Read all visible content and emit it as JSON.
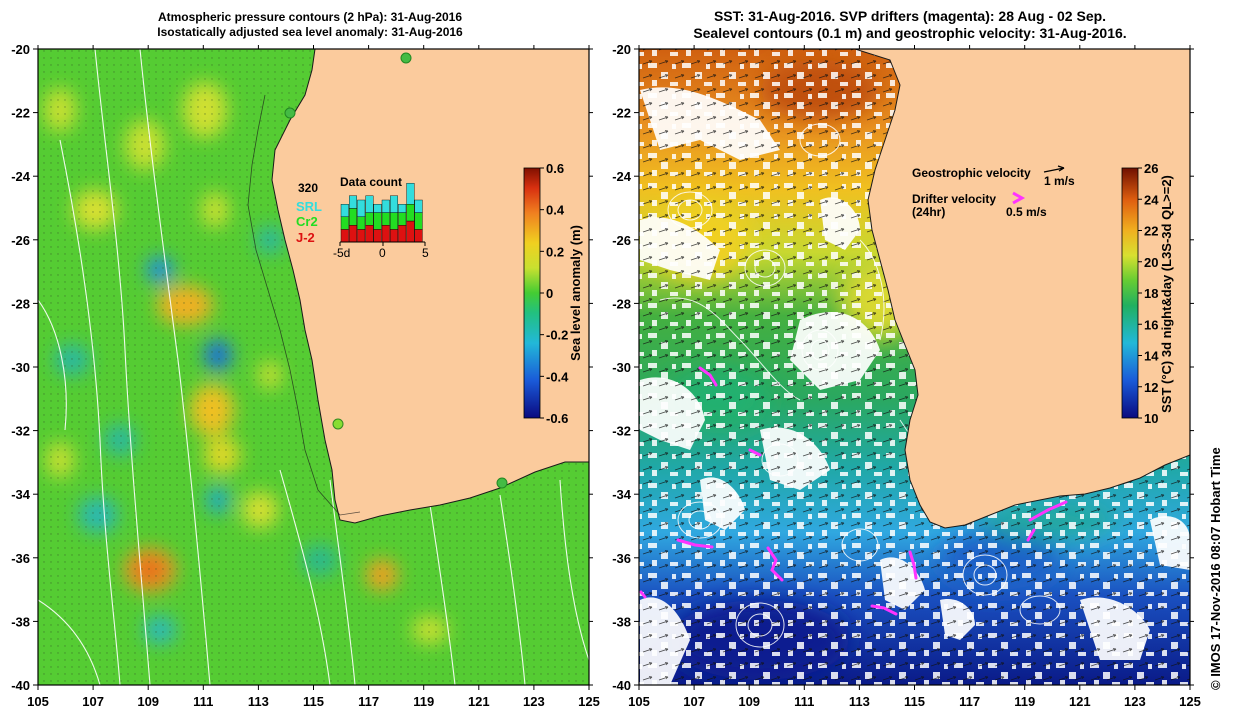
{
  "left_panel": {
    "title_line1": "Atmospheric pressure contours (2 hPa): 31-Aug-2016",
    "title_line2": "Isostatically adjusted sea level anomaly: 31-Aug-2016",
    "colorbar": {
      "label": "Sea level anomaly (m)",
      "ticks": [
        "0.6",
        "0.4",
        "0.2",
        "0",
        "-0.2",
        "-0.4",
        "-0.6"
      ]
    },
    "data_count": {
      "title": "Data count",
      "total": "320",
      "legend": [
        {
          "label": "SRL",
          "color": "#33dddd"
        },
        {
          "label": "Cr2",
          "color": "#22dd22"
        },
        {
          "label": "J-2",
          "color": "#dd1111"
        }
      ],
      "axis_ticks": [
        "-5d",
        "0",
        "5"
      ],
      "bars": [
        {
          "j2": 3,
          "cr2": 3,
          "srl": 3
        },
        {
          "j2": 4,
          "cr2": 4,
          "srl": 3
        },
        {
          "j2": 3,
          "cr2": 3,
          "srl": 4
        },
        {
          "j2": 4,
          "cr2": 3,
          "srl": 4
        },
        {
          "j2": 3,
          "cr2": 4,
          "srl": 2
        },
        {
          "j2": 4,
          "cr2": 3,
          "srl": 3
        },
        {
          "j2": 3,
          "cr2": 4,
          "srl": 4
        },
        {
          "j2": 4,
          "cr2": 3,
          "srl": 2
        },
        {
          "j2": 5,
          "cr2": 4,
          "srl": 5
        },
        {
          "j2": 3,
          "cr2": 4,
          "srl": 3
        }
      ]
    }
  },
  "right_panel": {
    "title_line1": "SST: 31-Aug-2016. SVP drifters (magenta): 28 Aug - 02 Sep.",
    "title_line2": "Sealevel contours (0.1 m) and geostrophic velocity: 31-Aug-2016.",
    "colorbar": {
      "label": "SST (°C) 3d night&day (L3S-3d QL>=2)",
      "ticks": [
        "26",
        "24",
        "22",
        "20",
        "18",
        "16",
        "14",
        "12",
        "10"
      ]
    },
    "legend": {
      "geo_label": "Geostrophic velocity",
      "geo_scale": "1 m/s",
      "drifter_label": "Drifter velocity",
      "drifter_period": "(24hr)",
      "drifter_scale": "0.5 m/s"
    }
  },
  "axes": {
    "lat_labels": [
      "-20",
      "-22",
      "-24",
      "-26",
      "-28",
      "-30",
      "-32",
      "-34",
      "-36",
      "-38",
      "-40"
    ],
    "lon_labels": [
      "105",
      "107",
      "109",
      "111",
      "113",
      "115",
      "117",
      "119",
      "121",
      "123",
      "125"
    ]
  },
  "credit": "© IMOS 17-Nov-2016 08:07 Hobart Time",
  "colors": {
    "land": "#fbcb9d",
    "sla_background": "#55cc33",
    "drifter": "#ff33ff"
  }
}
